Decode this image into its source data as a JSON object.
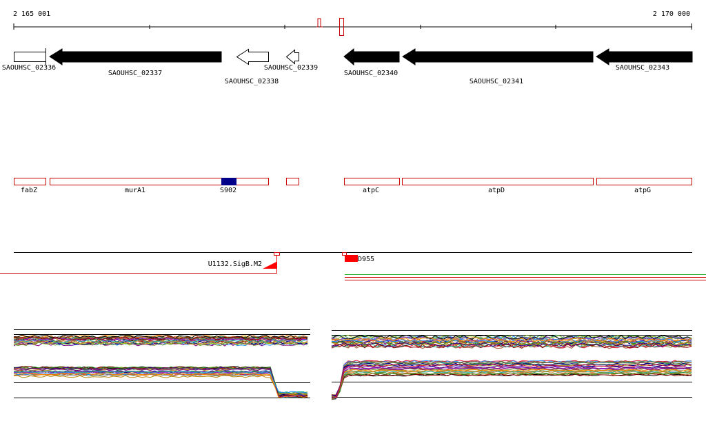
{
  "ruler": {
    "start": "2 165 001",
    "end": "2 170 000"
  },
  "genes": [
    {
      "locus": "SAOUHSC_02336",
      "strand": "+",
      "filled": false
    },
    {
      "locus": "SAOUHSC_02337",
      "strand": "-",
      "filled": true
    },
    {
      "locus": "SAOUHSC_02338",
      "strand": "-",
      "filled": false
    },
    {
      "locus": "SAOUHSC_02339",
      "strand": "-",
      "filled": false
    },
    {
      "locus": "SAOUHSC_02340",
      "strand": "-",
      "filled": true
    },
    {
      "locus": "SAOUHSC_02341",
      "strand": "-",
      "filled": true
    },
    {
      "locus": "SAOUHSC_02343",
      "strand": "-",
      "filled": true
    }
  ],
  "gene_names": [
    "fabZ",
    "murA1",
    "S902",
    "atpC",
    "atpD",
    "atpG"
  ],
  "features": {
    "left_label": "U1132.SigB.M2",
    "right_label": "D955"
  },
  "colors": {
    "feature_outline": "#cc0000",
    "feature_fill": "#ff0000",
    "highlight": "#00008b",
    "gene_filled": "#000000",
    "gene_open": "#ffffff"
  }
}
